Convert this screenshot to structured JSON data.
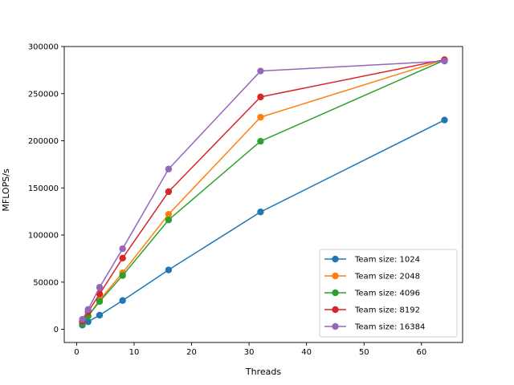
{
  "chart_data": {
    "type": "line",
    "xlabel": "Threads",
    "ylabel": "MFLOPS/s",
    "xlim": [
      -2.15,
      67.15
    ],
    "ylim": [
      -14000,
      300000
    ],
    "xticks": [
      0,
      10,
      20,
      30,
      40,
      50,
      60
    ],
    "yticks": [
      0,
      50000,
      100000,
      150000,
      200000,
      250000,
      300000
    ],
    "grid": false,
    "legend_position": "lower-right",
    "x": [
      1,
      2,
      4,
      8,
      16,
      32,
      64
    ],
    "series": [
      {
        "name": "Team size: 1024",
        "color": "#1f77b4",
        "values": [
          4500,
          8000,
          15000,
          30500,
          63000,
          124500,
          222000
        ]
      },
      {
        "name": "Team size: 2048",
        "color": "#ff7f0e",
        "values": [
          6500,
          14000,
          31000,
          60000,
          122000,
          225000,
          286000
        ]
      },
      {
        "name": "Team size: 4096",
        "color": "#2ca02c",
        "values": [
          6000,
          14000,
          29500,
          57000,
          116000,
          199500,
          285500
        ]
      },
      {
        "name": "Team size: 8192",
        "color": "#d62728",
        "values": [
          8500,
          18500,
          37500,
          75500,
          146000,
          246500,
          286000
        ]
      },
      {
        "name": "Team size: 16384",
        "color": "#9467bd",
        "values": [
          10500,
          21000,
          44500,
          85500,
          170000,
          274000,
          284500
        ]
      }
    ]
  }
}
